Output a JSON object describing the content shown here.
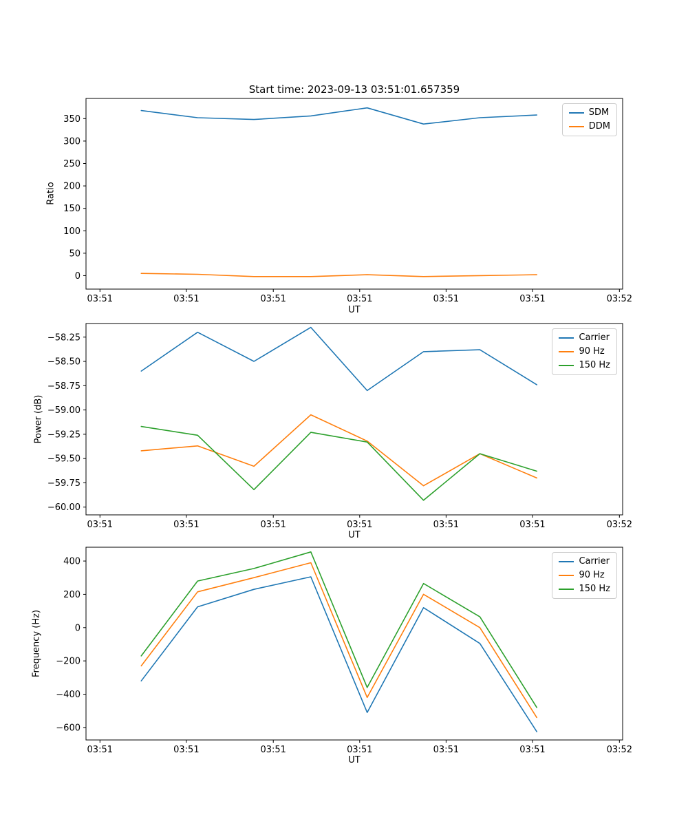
{
  "figure": {
    "title": "Start time: 2023-09-13 03:51:01.657359"
  },
  "chart_data": [
    {
      "type": "line",
      "title": "Start time: 2023-09-13 03:51:01.657359",
      "xlabel": "UT",
      "ylabel": "Ratio",
      "ylim": [
        -30,
        395
      ],
      "y_ticks": [
        0,
        50,
        100,
        150,
        200,
        250,
        300,
        350
      ],
      "y_tick_labels": [
        "0",
        "50",
        "100",
        "150",
        "200",
        "250",
        "300",
        "350"
      ],
      "x_tick_positions": [
        0.026,
        0.187,
        0.349,
        0.51,
        0.671,
        0.832,
        0.994
      ],
      "x_tick_labels": [
        "03:51",
        "03:51",
        "03:51",
        "03:51",
        "03:51",
        "03:51",
        "03:52"
      ],
      "x_positions": [
        0.103,
        0.208,
        0.313,
        0.419,
        0.524,
        0.629,
        0.734,
        0.84
      ],
      "grid": false,
      "legend_loc": "upper right",
      "series": [
        {
          "name": "SDM",
          "color": "#1f77b4",
          "values": [
            368,
            352,
            348,
            356,
            374,
            338,
            352,
            358
          ]
        },
        {
          "name": "DDM",
          "color": "#ff7f0e",
          "values": [
            5,
            3,
            -2,
            -2,
            2,
            -2,
            0,
            2
          ]
        }
      ]
    },
    {
      "type": "line",
      "title": "",
      "xlabel": "UT",
      "ylabel": "Power (dB)",
      "ylim": [
        -60.08,
        -58.11
      ],
      "y_ticks": [
        -60.0,
        -59.75,
        -59.5,
        -59.25,
        -59.0,
        -58.75,
        -58.5,
        -58.25
      ],
      "y_tick_labels": [
        "−60.00",
        "−59.75",
        "−59.50",
        "−59.25",
        "−59.00",
        "−58.75",
        "−58.50",
        "−58.25"
      ],
      "x_tick_positions": [
        0.026,
        0.187,
        0.349,
        0.51,
        0.671,
        0.832,
        0.994
      ],
      "x_tick_labels": [
        "03:51",
        "03:51",
        "03:51",
        "03:51",
        "03:51",
        "03:51",
        "03:52"
      ],
      "x_positions": [
        0.103,
        0.208,
        0.313,
        0.419,
        0.524,
        0.629,
        0.734,
        0.84
      ],
      "grid": false,
      "legend_loc": "upper right",
      "series": [
        {
          "name": "Carrier",
          "color": "#1f77b4",
          "values": [
            -58.6,
            -58.2,
            -58.5,
            -58.15,
            -58.8,
            -58.4,
            -58.38,
            -58.74
          ]
        },
        {
          "name": "90 Hz",
          "color": "#ff7f0e",
          "values": [
            -59.42,
            -59.37,
            -59.58,
            -59.05,
            -59.32,
            -59.78,
            -59.45,
            -59.7
          ]
        },
        {
          "name": "150 Hz",
          "color": "#2ca02c",
          "values": [
            -59.17,
            -59.26,
            -59.82,
            -59.23,
            -59.33,
            -59.93,
            -59.45,
            -59.63
          ]
        }
      ]
    },
    {
      "type": "line",
      "title": "",
      "xlabel": "UT",
      "ylabel": "Frequency (Hz)",
      "ylim": [
        -675,
        483
      ],
      "y_ticks": [
        -600,
        -400,
        -200,
        0,
        200,
        400
      ],
      "y_tick_labels": [
        "−600",
        "−400",
        "−200",
        "0",
        "200",
        "400"
      ],
      "x_tick_positions": [
        0.026,
        0.187,
        0.349,
        0.51,
        0.671,
        0.832,
        0.994
      ],
      "x_tick_labels": [
        "03:51",
        "03:51",
        "03:51",
        "03:51",
        "03:51",
        "03:51",
        "03:52"
      ],
      "x_positions": [
        0.103,
        0.208,
        0.313,
        0.419,
        0.524,
        0.629,
        0.734,
        0.84
      ],
      "grid": false,
      "legend_loc": "upper right",
      "series": [
        {
          "name": "Carrier",
          "color": "#1f77b4",
          "values": [
            -320,
            125,
            230,
            305,
            -510,
            120,
            -95,
            -625
          ]
        },
        {
          "name": "90 Hz",
          "color": "#ff7f0e",
          "values": [
            -230,
            215,
            300,
            390,
            -420,
            200,
            0,
            -540
          ]
        },
        {
          "name": "150 Hz",
          "color": "#2ca02c",
          "values": [
            -170,
            280,
            355,
            455,
            -360,
            265,
            65,
            -480
          ]
        }
      ]
    }
  ]
}
